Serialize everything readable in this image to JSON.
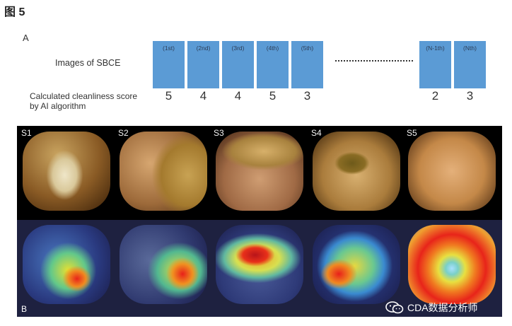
{
  "figure_title": "图 5",
  "panel_a": {
    "label": "A",
    "row_images_label": "Images of SBCE",
    "row_scores_label_line1": "Calculated cleanliness score",
    "row_scores_label_line2": "by AI algorithm",
    "frames": [
      {
        "label": "(1st)",
        "score": "5"
      },
      {
        "label": "(2nd)",
        "score": "4"
      },
      {
        "label": "(3rd)",
        "score": "4"
      },
      {
        "label": "(4th)",
        "score": "5"
      },
      {
        "label": "(5th)",
        "score": "3"
      },
      {
        "label": "(N-1th)",
        "score": "2"
      },
      {
        "label": "(Nth)",
        "score": "3"
      }
    ],
    "frame_color": "#5b9bd5"
  },
  "panel_b": {
    "label": "B",
    "scenes": [
      "S1",
      "S2",
      "S3",
      "S4",
      "S5"
    ]
  },
  "watermark": {
    "icon": "wechat-icon",
    "text": "CDA数据分析师"
  }
}
